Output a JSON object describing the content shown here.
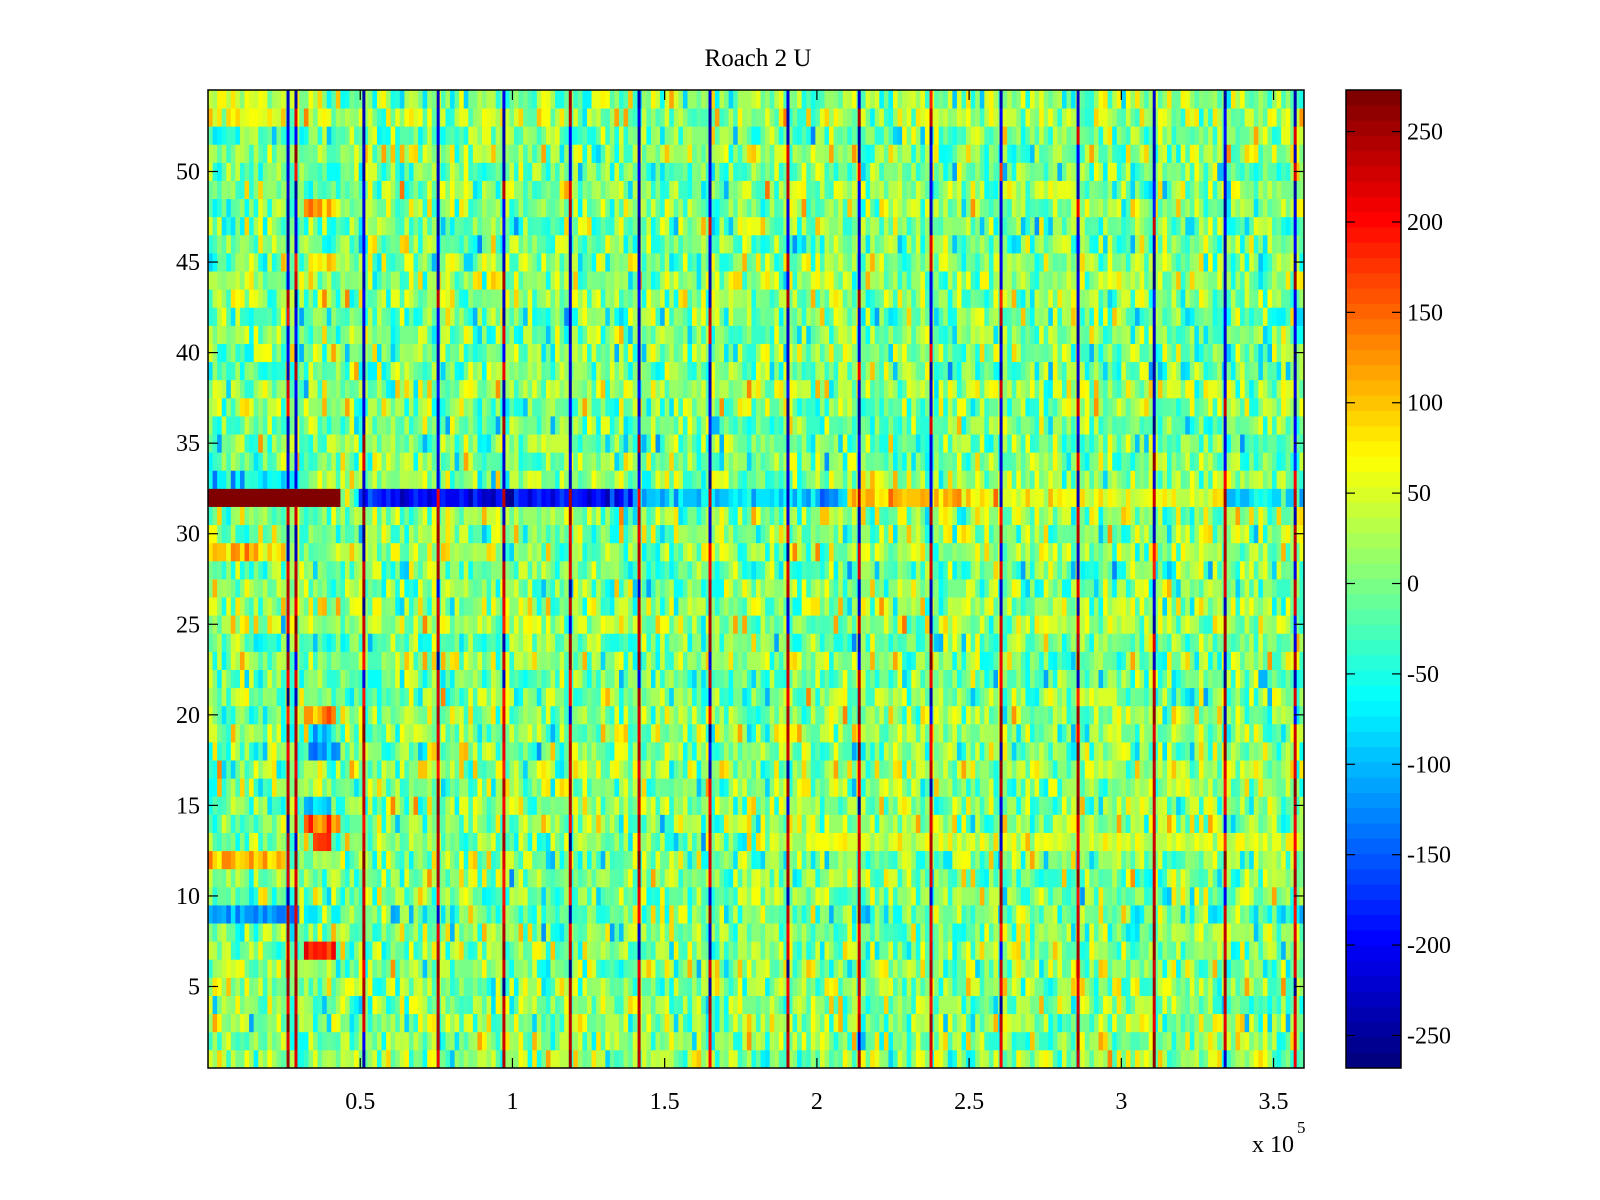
{
  "chart_data": {
    "type": "heatmap",
    "title": "Roach 2 U",
    "xlabel": "",
    "ylabel": "",
    "x_exponent_label": "x 10",
    "x_exponent": "5",
    "xlim": [
      0,
      3.6
    ],
    "ylim": [
      0.5,
      54.5
    ],
    "rows": 54,
    "xticks": [
      0.5,
      1,
      1.5,
      2,
      2.5,
      3,
      3.5
    ],
    "xtick_labels": [
      "0.5",
      "1",
      "1.5",
      "2",
      "2.5",
      "3",
      "3.5"
    ],
    "yticks": [
      5,
      10,
      15,
      20,
      25,
      30,
      35,
      40,
      45,
      50
    ],
    "ytick_labels": [
      "5",
      "10",
      "15",
      "20",
      "25",
      "30",
      "35",
      "40",
      "45",
      "50"
    ],
    "colormap": "jet",
    "clim": [
      -268,
      273
    ],
    "colorbar": {
      "ticks": [
        250,
        200,
        150,
        100,
        50,
        0,
        -50,
        -100,
        -150,
        -200,
        -250
      ],
      "tick_labels": [
        "250",
        "200",
        "150",
        "100",
        "50",
        "0",
        "-50",
        "-100",
        "-150",
        "-200",
        "-250"
      ],
      "placement": "right"
    },
    "background_value_mean": 5,
    "background_value_spread": 45,
    "vertical_stripes_x": [
      0.263,
      0.289,
      0.512,
      0.756,
      0.972,
      1.19,
      1.416,
      1.649,
      1.905,
      2.139,
      2.375,
      2.605,
      2.858,
      3.108,
      3.341,
      3.571
    ],
    "stripe_values": {
      "upper_rows": -220,
      "lower_rows": 230
    },
    "row_segments": [
      {
        "row": 32,
        "x_from": 0,
        "x_to": 0.44,
        "value": 273
      },
      {
        "row": 32,
        "x_from": 0.5,
        "x_to": 1.4,
        "value": -200
      },
      {
        "row": 32,
        "x_from": 1.4,
        "x_to": 2.1,
        "value": -90
      },
      {
        "row": 32,
        "x_from": 2.1,
        "x_to": 2.6,
        "value": 100
      },
      {
        "row": 32,
        "x_from": 2.6,
        "x_to": 3.35,
        "value": 55
      },
      {
        "row": 32,
        "x_from": 3.35,
        "x_to": 3.6,
        "value": -70
      },
      {
        "row": 12,
        "x_from": 0,
        "x_to": 0.25,
        "value": 100
      },
      {
        "row": 9,
        "x_from": 0,
        "x_to": 0.3,
        "value": -130
      },
      {
        "row": 29,
        "x_from": 0,
        "x_to": 0.25,
        "value": 85
      },
      {
        "row": 33,
        "x_from": 0,
        "x_to": 0.3,
        "value": -80
      },
      {
        "row": 13,
        "x_from": 1.8,
        "x_to": 3.6,
        "value": 45
      },
      {
        "row": 7,
        "x_from": 0.32,
        "x_to": 0.42,
        "value": 185
      },
      {
        "row": 13,
        "x_from": 0.35,
        "x_to": 0.4,
        "value": 200
      },
      {
        "row": 14,
        "x_from": 0.32,
        "x_to": 0.43,
        "value": 150
      },
      {
        "row": 15,
        "x_from": 0.32,
        "x_to": 0.4,
        "value": -110
      },
      {
        "row": 18,
        "x_from": 0.33,
        "x_to": 0.43,
        "value": -130
      },
      {
        "row": 19,
        "x_from": 0.33,
        "x_to": 0.4,
        "value": -90
      },
      {
        "row": 20,
        "x_from": 0.32,
        "x_to": 0.42,
        "value": 110
      },
      {
        "row": 45,
        "x_from": 0.33,
        "x_to": 0.41,
        "value": 60
      },
      {
        "row": 48,
        "x_from": 0.32,
        "x_to": 0.43,
        "value": 90
      },
      {
        "row": 54,
        "x_from": 0,
        "x_to": 0.3,
        "value": 50
      },
      {
        "row": 53,
        "x_from": 0,
        "x_to": 0.25,
        "value": 60
      }
    ]
  }
}
